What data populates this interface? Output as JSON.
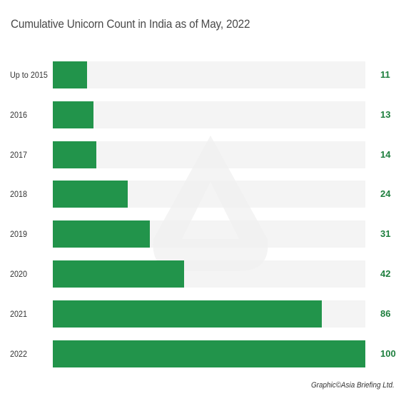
{
  "chart_data": {
    "type": "bar",
    "orientation": "horizontal",
    "title": "Cumulative Unicorn Count in India as of May, 2022",
    "categories": [
      "Up to 2015",
      "2016",
      "2017",
      "2018",
      "2019",
      "2020",
      "2021",
      "2022"
    ],
    "values": [
      11,
      13,
      14,
      24,
      31,
      42,
      86,
      100
    ],
    "xlim": [
      0,
      100
    ],
    "grid": false,
    "legend": "none",
    "bar_color": "#22944b",
    "value_label_color": "#1e7f3e"
  },
  "source": "Graphic©Asia Briefing Ltd."
}
